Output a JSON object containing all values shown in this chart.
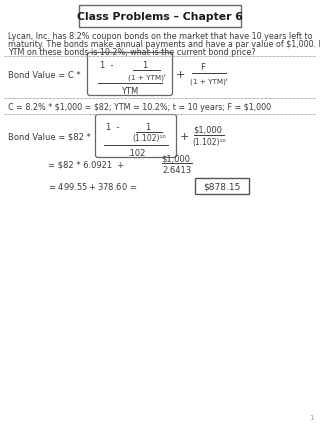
{
  "title": "Class Problems – Chapter 6",
  "background_color": "#ffffff",
  "text_color": "#3a3a3a",
  "problem_text_lines": [
    "Lycan, Inc. has 8.2% coupon bonds on the market that have 10 years left to",
    "maturity. The bonds make annual payments and have a par value of $1,000. If the",
    "YTM on these bonds is 10.2%, what is the current bond price?"
  ],
  "given_line": "C = 8.2% * $1,000 = $82; YTM = 10.2%; t = 10 years; F = $1,000",
  "answer": "$878.15",
  "page_num": "1"
}
